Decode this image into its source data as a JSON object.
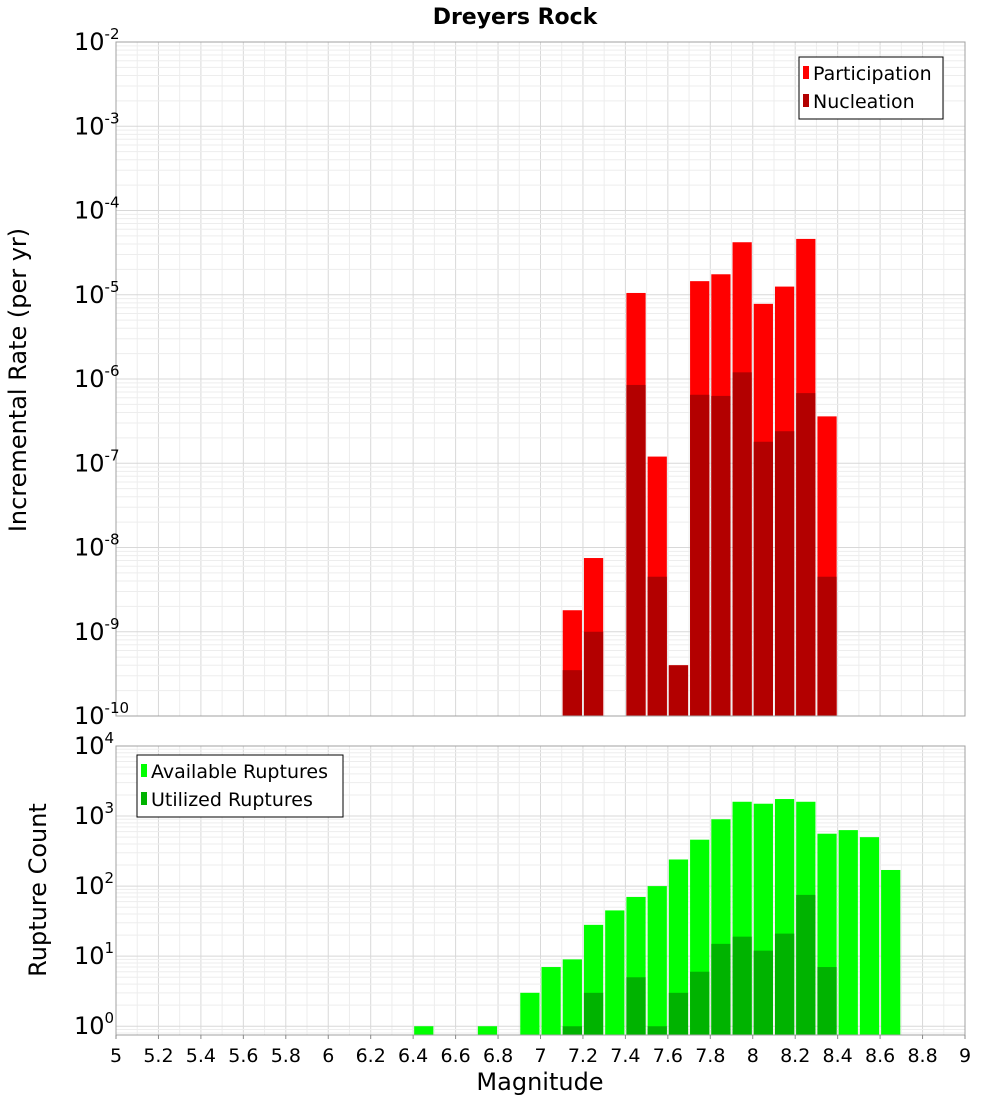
{
  "chart_data": [
    {
      "type": "bar",
      "title": "Dreyers Rock",
      "xlabel": "",
      "ylabel": "Incremental Rate (per yr)",
      "yscale": "log",
      "xlim": [
        5,
        9
      ],
      "ylim": [
        1e-10,
        0.01
      ],
      "ytick_exponents": [
        -10,
        -9,
        -8,
        -7,
        -6,
        -5,
        -4,
        -3,
        -2
      ],
      "bin_width": 0.1,
      "legend": {
        "position": "top-right",
        "entries": [
          "Participation",
          "Nucleation"
        ]
      },
      "series": [
        {
          "name": "Participation",
          "color": "#ff0000",
          "points": [
            {
              "x": 7.15,
              "y": 1.8e-09
            },
            {
              "x": 7.25,
              "y": 7.5e-09
            },
            {
              "x": 7.45,
              "y": 1.05e-05
            },
            {
              "x": 7.55,
              "y": 1.2e-07
            },
            {
              "x": 7.65,
              "y": 4e-10
            },
            {
              "x": 7.75,
              "y": 1.45e-05
            },
            {
              "x": 7.85,
              "y": 1.75e-05
            },
            {
              "x": 7.95,
              "y": 4.2e-05
            },
            {
              "x": 8.05,
              "y": 7.8e-06
            },
            {
              "x": 8.15,
              "y": 1.25e-05
            },
            {
              "x": 8.25,
              "y": 4.6e-05
            },
            {
              "x": 8.35,
              "y": 3.6e-07
            }
          ]
        },
        {
          "name": "Nucleation",
          "color": "#b30000",
          "points": [
            {
              "x": 7.15,
              "y": 3.5e-10
            },
            {
              "x": 7.25,
              "y": 1e-09
            },
            {
              "x": 7.45,
              "y": 8.5e-07
            },
            {
              "x": 7.55,
              "y": 4.5e-09
            },
            {
              "x": 7.65,
              "y": 4e-10
            },
            {
              "x": 7.75,
              "y": 6.5e-07
            },
            {
              "x": 7.85,
              "y": 6.3e-07
            },
            {
              "x": 7.95,
              "y": 1.2e-06
            },
            {
              "x": 8.05,
              "y": 1.8e-07
            },
            {
              "x": 8.15,
              "y": 2.4e-07
            },
            {
              "x": 8.25,
              "y": 6.8e-07
            },
            {
              "x": 8.35,
              "y": 4.5e-09
            }
          ]
        }
      ]
    },
    {
      "type": "bar",
      "title": "",
      "xlabel": "Magnitude",
      "ylabel": "Rupture Count",
      "yscale": "log",
      "xlim": [
        5,
        9
      ],
      "ylim": [
        0.75,
        10000
      ],
      "ytick_exponents": [
        0,
        1,
        2,
        3,
        4
      ],
      "xticks": [
        "5",
        "5.2",
        "5.4",
        "5.6",
        "5.8",
        "6",
        "6.2",
        "6.4",
        "6.6",
        "6.8",
        "7",
        "7.2",
        "7.4",
        "7.6",
        "7.8",
        "8",
        "8.2",
        "8.4",
        "8.6",
        "8.8",
        "9"
      ],
      "bin_width": 0.1,
      "legend": {
        "position": "top-left",
        "entries": [
          "Available Ruptures",
          "Utilized Ruptures"
        ]
      },
      "series": [
        {
          "name": "Available Ruptures",
          "color": "#00ff00",
          "points": [
            {
              "x": 6.45,
              "y": 1
            },
            {
              "x": 6.75,
              "y": 1
            },
            {
              "x": 6.95,
              "y": 3
            },
            {
              "x": 7.05,
              "y": 7
            },
            {
              "x": 7.15,
              "y": 9
            },
            {
              "x": 7.25,
              "y": 28
            },
            {
              "x": 7.35,
              "y": 45
            },
            {
              "x": 7.45,
              "y": 70
            },
            {
              "x": 7.55,
              "y": 100
            },
            {
              "x": 7.65,
              "y": 240
            },
            {
              "x": 7.75,
              "y": 460
            },
            {
              "x": 7.85,
              "y": 900
            },
            {
              "x": 7.95,
              "y": 1600
            },
            {
              "x": 8.05,
              "y": 1500
            },
            {
              "x": 8.15,
              "y": 1750
            },
            {
              "x": 8.25,
              "y": 1600
            },
            {
              "x": 8.35,
              "y": 560
            },
            {
              "x": 8.45,
              "y": 630
            },
            {
              "x": 8.55,
              "y": 500
            },
            {
              "x": 8.65,
              "y": 170
            }
          ]
        },
        {
          "name": "Utilized Ruptures",
          "color": "#00b300",
          "points": [
            {
              "x": 7.15,
              "y": 1
            },
            {
              "x": 7.25,
              "y": 3
            },
            {
              "x": 7.45,
              "y": 5
            },
            {
              "x": 7.55,
              "y": 1
            },
            {
              "x": 7.65,
              "y": 3
            },
            {
              "x": 7.75,
              "y": 6
            },
            {
              "x": 7.85,
              "y": 15
            },
            {
              "x": 7.95,
              "y": 19
            },
            {
              "x": 8.05,
              "y": 12
            },
            {
              "x": 8.15,
              "y": 21
            },
            {
              "x": 8.25,
              "y": 75
            },
            {
              "x": 8.35,
              "y": 7
            }
          ]
        }
      ]
    }
  ]
}
